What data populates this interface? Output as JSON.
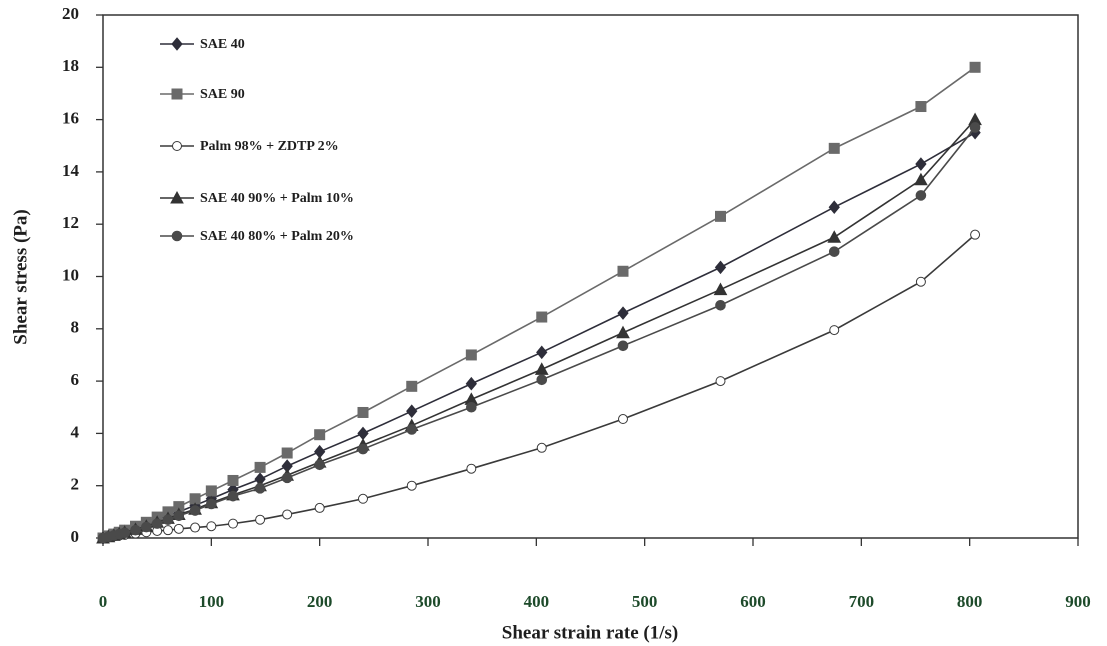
{
  "chart_data": {
    "type": "line",
    "xlabel": "Shear strain rate (1/s)",
    "ylabel": "Shear stress (Pa)",
    "xlim": [
      0,
      900
    ],
    "xticks": [
      0,
      100,
      200,
      300,
      400,
      500,
      600,
      700,
      800,
      900
    ],
    "ylim": [
      0,
      20
    ],
    "yticks": [
      0,
      2,
      4,
      6,
      8,
      10,
      12,
      14,
      16,
      18,
      20
    ],
    "legend": "upper-left",
    "x": [
      0,
      5,
      10,
      15,
      20,
      30,
      40,
      50,
      60,
      70,
      85,
      100,
      120,
      145,
      170,
      200,
      240,
      285,
      340,
      405,
      480,
      570,
      675,
      755,
      805
    ],
    "series": [
      {
        "name": "SAE 40",
        "color": "#2e2e3a",
        "marker": "diamond",
        "values": [
          0,
          0.06,
          0.12,
          0.18,
          0.25,
          0.38,
          0.5,
          0.7,
          0.85,
          1.0,
          1.25,
          1.5,
          1.85,
          2.25,
          2.75,
          3.3,
          4.0,
          4.85,
          5.9,
          7.1,
          8.6,
          10.35,
          12.65,
          14.3,
          15.5
        ]
      },
      {
        "name": "SAE 90",
        "color": "#6a6a6a",
        "marker": "square",
        "values": [
          0,
          0.08,
          0.15,
          0.22,
          0.3,
          0.45,
          0.6,
          0.8,
          1.0,
          1.2,
          1.5,
          1.8,
          2.2,
          2.7,
          3.25,
          3.95,
          4.8,
          5.8,
          7.0,
          8.45,
          10.2,
          12.3,
          14.9,
          16.5,
          18.0
        ]
      },
      {
        "name": "Palm 98% + ZDTP 2%",
        "color": "#3a3a3a",
        "marker": "open-circle",
        "values": [
          0,
          0.03,
          0.06,
          0.09,
          0.12,
          0.17,
          0.22,
          0.27,
          0.3,
          0.35,
          0.4,
          0.45,
          0.55,
          0.7,
          0.9,
          1.15,
          1.5,
          2.0,
          2.65,
          3.45,
          4.55,
          6.0,
          7.95,
          9.8,
          11.6
        ]
      },
      {
        "name": "SAE 40 90% + Palm 10%",
        "color": "#333333",
        "marker": "triangle",
        "values": [
          0,
          0.05,
          0.1,
          0.16,
          0.22,
          0.33,
          0.45,
          0.6,
          0.75,
          0.9,
          1.1,
          1.35,
          1.65,
          2.0,
          2.4,
          2.9,
          3.55,
          4.3,
          5.3,
          6.45,
          7.85,
          9.5,
          11.5,
          13.7,
          16.0
        ]
      },
      {
        "name": "SAE 40 80% + Palm 20%",
        "color": "#4a4a4a",
        "marker": "circle",
        "values": [
          0,
          0.05,
          0.1,
          0.15,
          0.2,
          0.3,
          0.42,
          0.55,
          0.7,
          0.85,
          1.05,
          1.3,
          1.6,
          1.9,
          2.3,
          2.8,
          3.4,
          4.15,
          5.0,
          6.05,
          7.35,
          8.9,
          10.95,
          13.1,
          15.7
        ]
      }
    ]
  }
}
